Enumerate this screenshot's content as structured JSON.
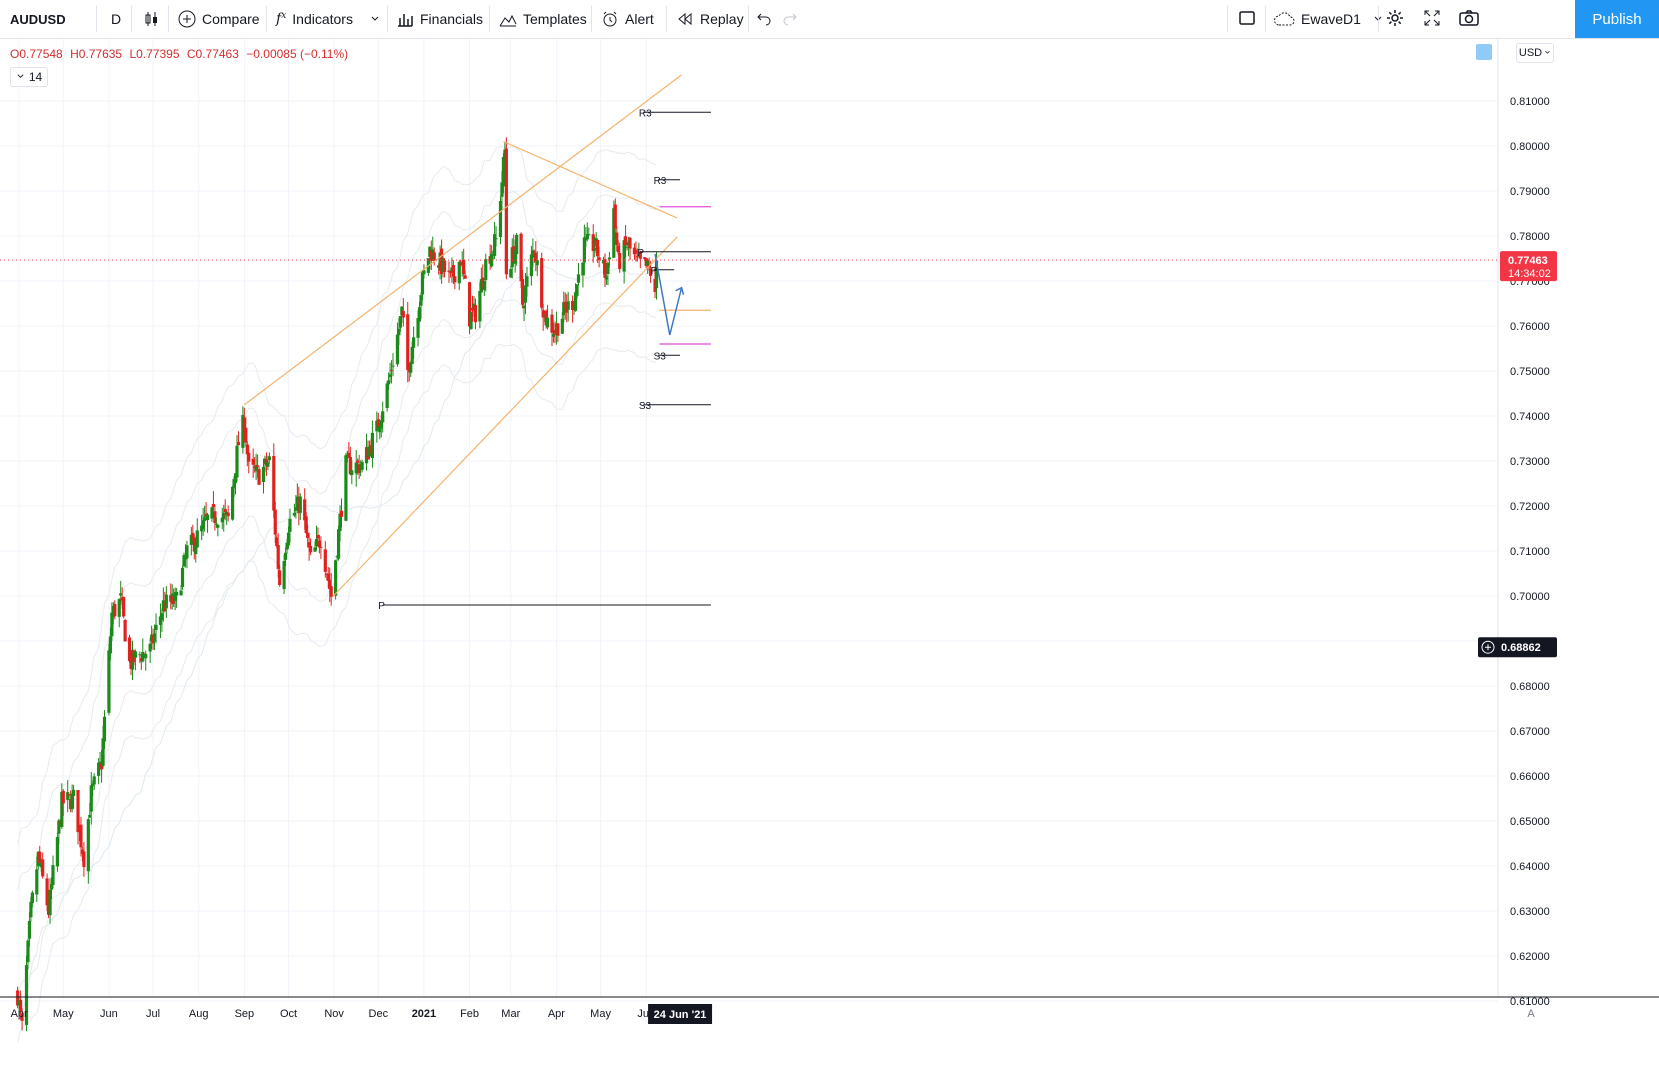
{
  "toolbar": {
    "symbol": "AUDUSD",
    "interval": "D",
    "compare": "Compare",
    "indicators": "Indicators",
    "financials": "Financials",
    "templates": "Templates",
    "alert": "Alert",
    "replay": "Replay",
    "layout_name": "EwaveD1",
    "publish": "Publish"
  },
  "legend": {
    "open": "O0.77548",
    "high": "H0.77635",
    "low": "L0.77395",
    "close": "C0.77463",
    "change": "−0.00085 (−0.11%)",
    "indicator_count": "14"
  },
  "price_axis": {
    "currency": "USD"
  },
  "scale_mode": "A",
  "colors": {
    "up": "#1b8a1b",
    "down": "#e0221f",
    "channel": "#f5b26b",
    "pivot_line": "#131722",
    "magenta_level": "#e04ee0",
    "projection": "#3f78c5",
    "price_label": "#f23645",
    "publish": "#2196f3"
  },
  "chart_data": {
    "type": "candlestick",
    "symbol": "AUDUSD",
    "interval": "D",
    "x_labels": [
      "Apr",
      "May",
      "Jun",
      "Jul",
      "Aug",
      "Sep",
      "Oct",
      "Nov",
      "Dec",
      "2021",
      "Feb",
      "Mar",
      "Apr",
      "May",
      "Jun",
      "24 Jun '21"
    ],
    "y_ticks": [
      "0.61000",
      "0.62000",
      "0.63000",
      "0.64000",
      "0.65000",
      "0.66000",
      "0.67000",
      "0.68000",
      "0.69000",
      "0.70000",
      "0.71000",
      "0.72000",
      "0.73000",
      "0.74000",
      "0.75000",
      "0.76000",
      "0.77000",
      "0.78000",
      "0.79000",
      "0.80000",
      "0.81000"
    ],
    "ylim": [
      0.6072,
      0.8168
    ],
    "last_price": "0.77463",
    "countdown": "14:34:02",
    "crosshair_price": "0.68862",
    "price_path": [
      [
        "2020-03-31",
        0.6115
      ],
      [
        "2020-04-03",
        0.604
      ],
      [
        "2020-04-09",
        0.63
      ],
      [
        "2020-04-14",
        0.642
      ],
      [
        "2020-04-21",
        0.63
      ],
      [
        "2020-04-30",
        0.654
      ],
      [
        "2020-05-08",
        0.655
      ],
      [
        "2020-05-15",
        0.642
      ],
      [
        "2020-05-20",
        0.656
      ],
      [
        "2020-05-27",
        0.663
      ],
      [
        "2020-06-03",
        0.696
      ],
      [
        "2020-06-09",
        0.699
      ],
      [
        "2020-06-15",
        0.685
      ],
      [
        "2020-06-22",
        0.687
      ],
      [
        "2020-06-29",
        0.688
      ],
      [
        "2020-07-08",
        0.698
      ],
      [
        "2020-07-17",
        0.699
      ],
      [
        "2020-07-24",
        0.71
      ],
      [
        "2020-07-31",
        0.713
      ],
      [
        "2020-08-07",
        0.717
      ],
      [
        "2020-08-14",
        0.718
      ],
      [
        "2020-08-21",
        0.717
      ],
      [
        "2020-08-28",
        0.734
      ],
      [
        "2020-09-01",
        0.739
      ],
      [
        "2020-09-04",
        0.728
      ],
      [
        "2020-09-11",
        0.727
      ],
      [
        "2020-09-18",
        0.73
      ],
      [
        "2020-09-25",
        0.703
      ],
      [
        "2020-10-01",
        0.716
      ],
      [
        "2020-10-09",
        0.721
      ],
      [
        "2020-10-16",
        0.708
      ],
      [
        "2020-10-23",
        0.713
      ],
      [
        "2020-10-30",
        0.7
      ],
      [
        "2020-11-04",
        0.714
      ],
      [
        "2020-11-09",
        0.729
      ],
      [
        "2020-11-20",
        0.729
      ],
      [
        "2020-11-30",
        0.737
      ],
      [
        "2020-12-09",
        0.749
      ],
      [
        "2020-12-17",
        0.763
      ],
      [
        "2020-12-21",
        0.75
      ],
      [
        "2020-12-31",
        0.77
      ],
      [
        "2021-01-05",
        0.777
      ],
      [
        "2021-01-12",
        0.774
      ],
      [
        "2021-01-19",
        0.77
      ],
      [
        "2021-01-26",
        0.775
      ],
      [
        "2021-02-01",
        0.762
      ],
      [
        "2021-02-05",
        0.763
      ],
      [
        "2021-02-12",
        0.774
      ],
      [
        "2021-02-19",
        0.779
      ],
      [
        "2021-02-25",
        0.799
      ],
      [
        "2021-02-26",
        0.772
      ],
      [
        "2021-03-05",
        0.778
      ],
      [
        "2021-03-09",
        0.765
      ],
      [
        "2021-03-17",
        0.778
      ],
      [
        "2021-03-24",
        0.762
      ],
      [
        "2021-03-31",
        0.759
      ],
      [
        "2021-04-06",
        0.763
      ],
      [
        "2021-04-13",
        0.766
      ],
      [
        "2021-04-20",
        0.778
      ],
      [
        "2021-04-27",
        0.778
      ],
      [
        "2021-05-05",
        0.771
      ],
      [
        "2021-05-10",
        0.786
      ],
      [
        "2021-05-13",
        0.774
      ],
      [
        "2021-05-19",
        0.778
      ],
      [
        "2021-05-26",
        0.774
      ],
      [
        "2021-06-01",
        0.773
      ],
      [
        "2021-06-04",
        0.772
      ],
      [
        "2021-06-07",
        0.766
      ],
      [
        "2021-06-08",
        0.7746
      ]
    ],
    "levels": [
      {
        "label": "R3",
        "value": 0.8075
      },
      {
        "label": "R3",
        "value": 0.7925
      },
      {
        "label": "P",
        "value": 0.7765
      },
      {
        "label": "P",
        "value": 0.7725
      },
      {
        "label": "S3",
        "value": 0.7535
      },
      {
        "label": "S3",
        "value": 0.7425
      },
      {
        "label": "P",
        "value": 0.698
      }
    ]
  }
}
